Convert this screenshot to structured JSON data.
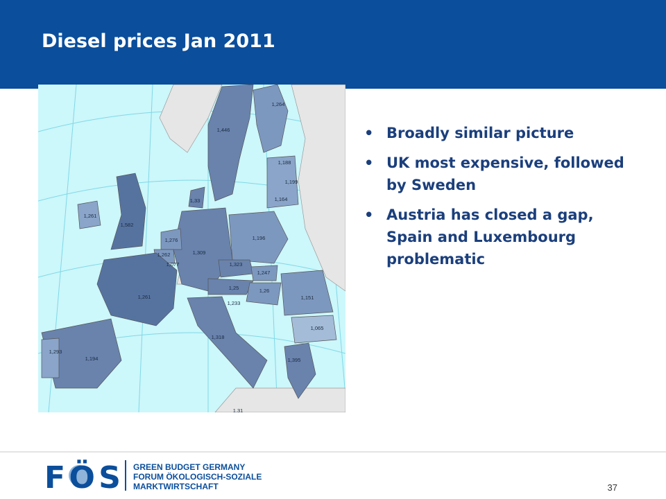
{
  "header": {
    "title": "Diesel prices Jan 2011"
  },
  "bullets": [
    "Broadly similar picture",
    "UK most expensive, followed by Sweden",
    "Austria has closed a gap, Spain and Luxembourg problematic"
  ],
  "map": {
    "labels": [
      "1,264",
      "1,446",
      "1,188",
      "1,199",
      "1,164",
      "1,33",
      "1,261",
      "1,582",
      "1,196",
      "1,276",
      "1,309",
      "1,262",
      "1,077",
      "1,323",
      "1,247",
      "1,25",
      "1,26",
      "1,151",
      "1,261",
      "1,233",
      "1,065",
      "1,318",
      "1,293",
      "1,194",
      "1,395",
      "1,31"
    ]
  },
  "footer": {
    "logo": "FÖS",
    "org_lines": [
      "GREEN BUDGET GERMANY",
      "FORUM ÖKOLOGISCH-SOZIALE",
      "MARKTWIRTSCHAFT"
    ],
    "page_number": "37"
  }
}
